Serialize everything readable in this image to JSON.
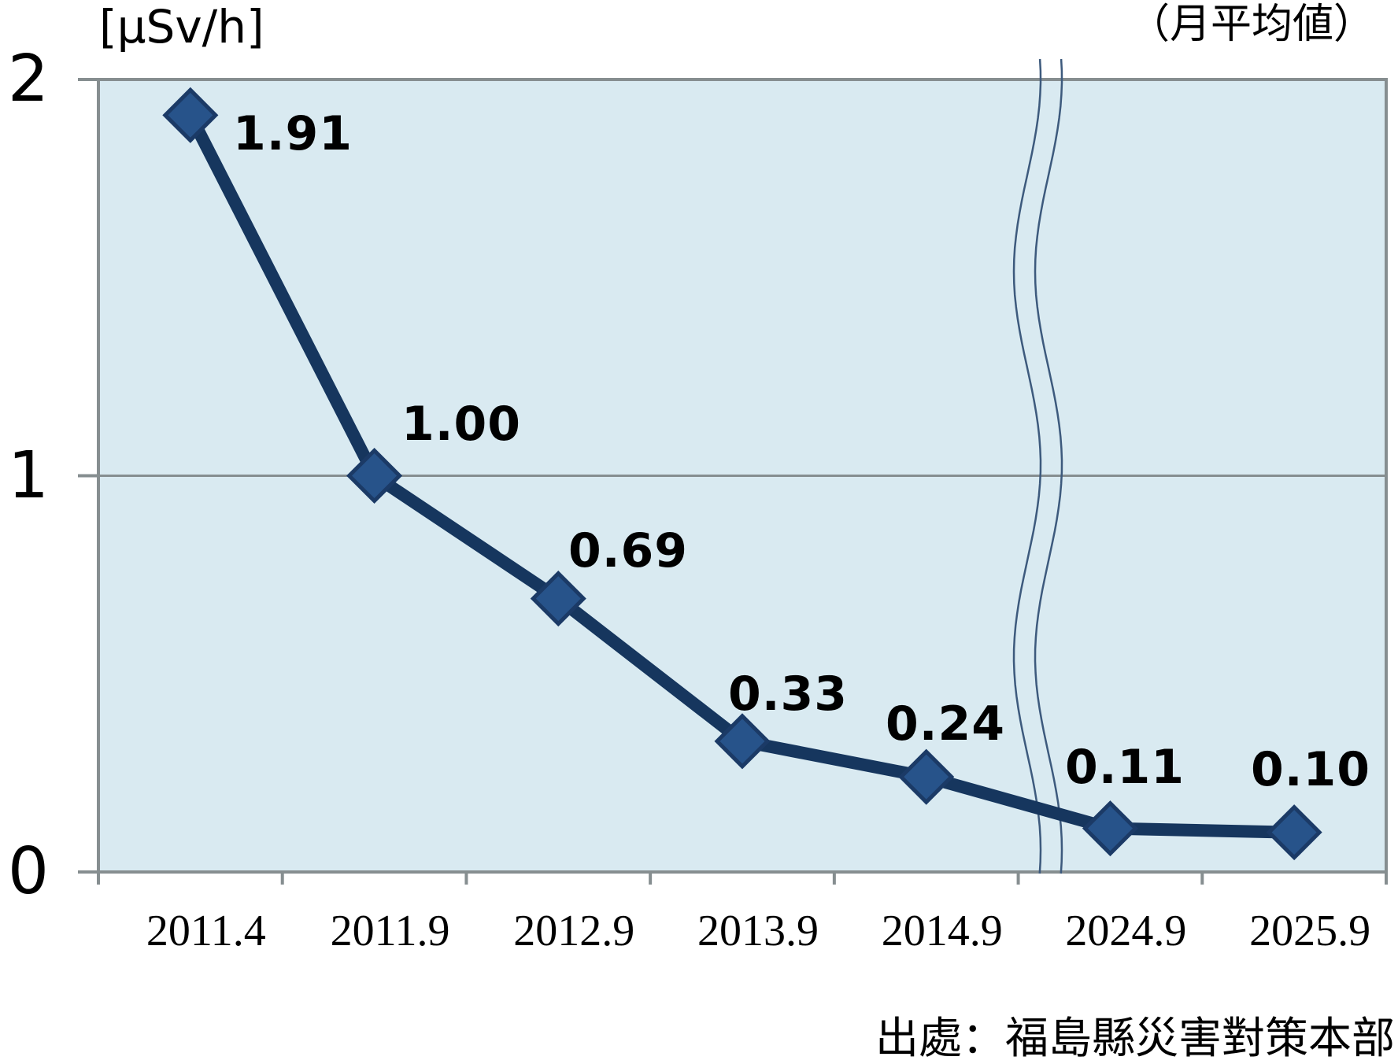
{
  "chart_data": {
    "type": "line",
    "unit_label": "[μSv/h]",
    "subtitle": "（月平均値）",
    "source": "出處：福島縣災害對策本部",
    "categories": [
      "2011.4",
      "2011.9",
      "2012.9",
      "2013.9",
      "2014.9",
      "2024.9",
      "2025.9"
    ],
    "values": [
      1.91,
      1.0,
      0.69,
      0.33,
      0.24,
      0.11,
      0.1
    ],
    "value_labels": [
      "1.91",
      "1.00",
      "0.69",
      "0.33",
      "0.24",
      "0.11",
      "0.10"
    ],
    "y_ticks": [
      0,
      1,
      2
    ],
    "y_tick_labels": [
      "0",
      "1",
      "2"
    ],
    "ylim": [
      0,
      2
    ],
    "gridlines": "horizontal line at y=1",
    "legend": "none",
    "axis_break": {
      "between": [
        "2014.9",
        "2024.9"
      ],
      "style": "double wavy vertical lines"
    },
    "marker": "diamond"
  },
  "colors": {
    "page_bg": "#ffffff",
    "plot_bg": "#d9eaf1",
    "axis_gray": "#868e90",
    "series_line": "#16365e",
    "marker_fill": "#27538a",
    "marker_stroke": "#1b3a66",
    "break_line": "#3d5a7d",
    "text": "#000000"
  }
}
